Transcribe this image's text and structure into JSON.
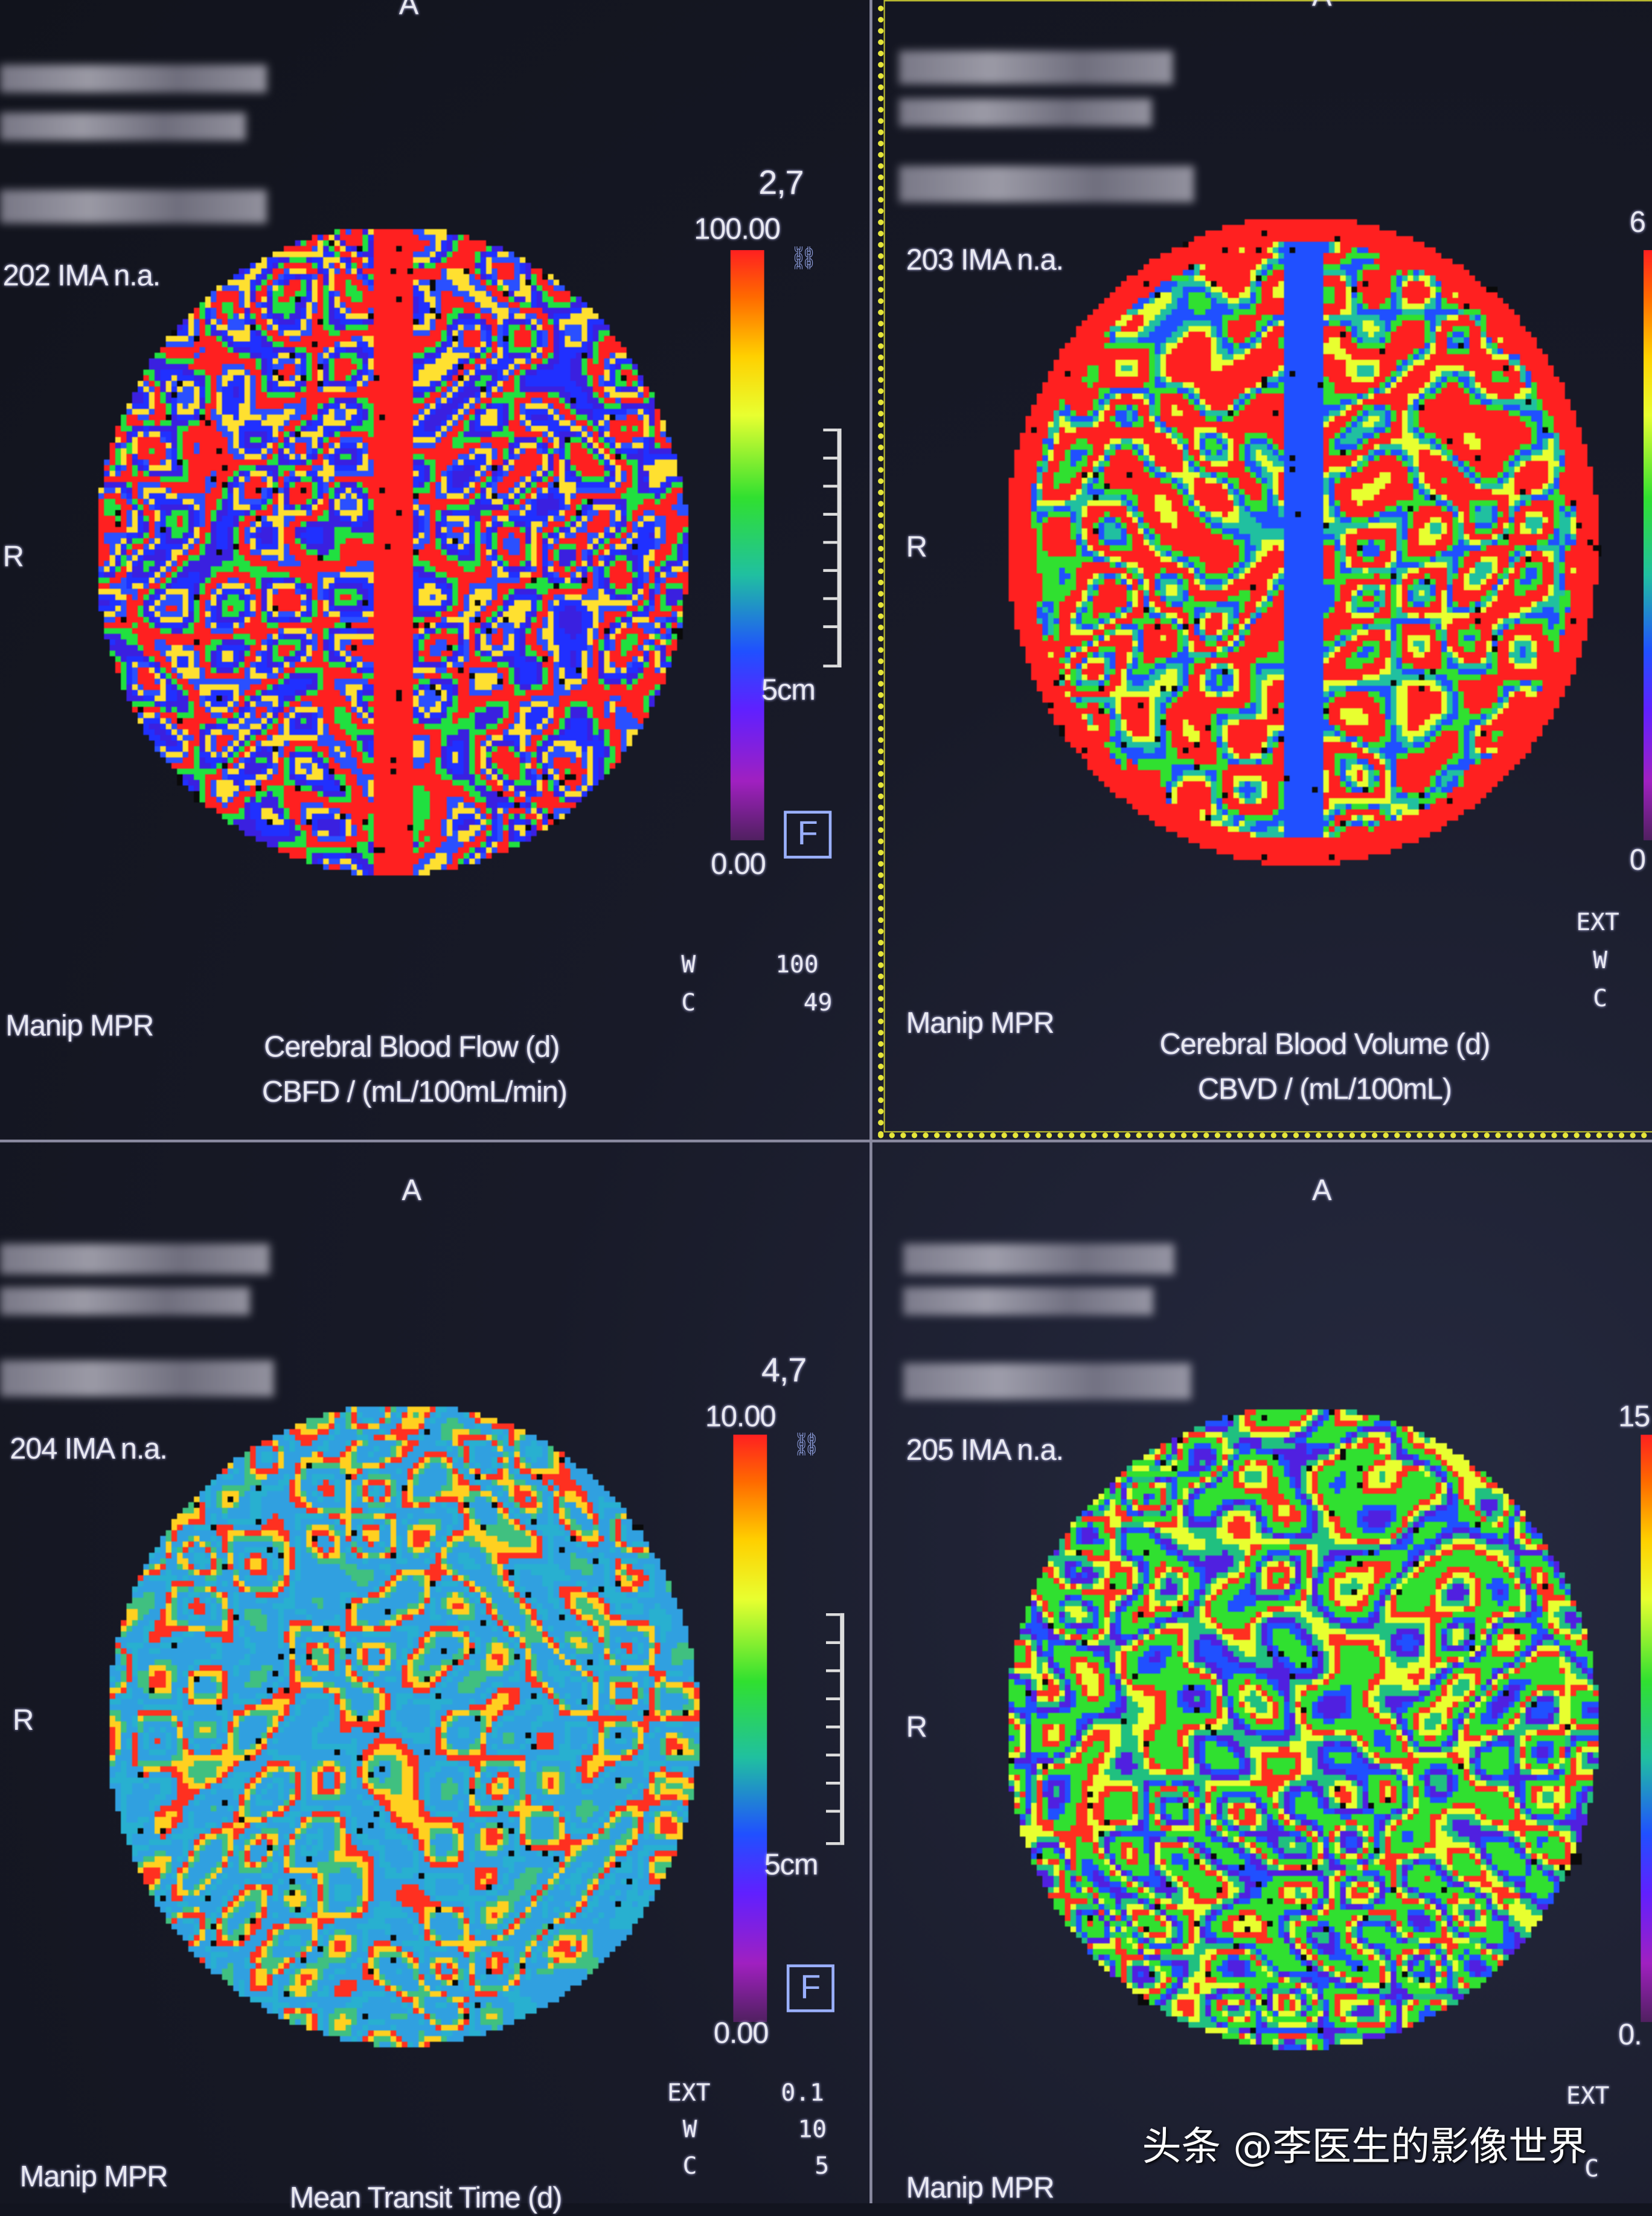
{
  "panels": [
    {
      "orientation_top": "A",
      "orientation_left": "R",
      "series": "202 IMA n.a.",
      "zoom": "2,7",
      "scale_max": "100.00",
      "scale_min": "0.00",
      "ruler_label": "5cm",
      "filter_badge": "F",
      "window_label": "W",
      "window_value": "100",
      "center_label": "C",
      "center_value": "49",
      "mode": "Manip MPR",
      "caption_line1": "Cerebral Blood Flow (d)",
      "caption_line2": "CBFD / (mL/100mL/min)",
      "palette": [
        "#2030ff",
        "#3a20e0",
        "#20e040",
        "#ff2020",
        "#ff2020",
        "#2a50ff",
        "#ffe030"
      ]
    },
    {
      "orientation_top": "A",
      "orientation_left": "R",
      "series": "203 IMA n.a.",
      "scale_max": "6",
      "scale_min": "0",
      "ext_label": "EXT",
      "window_label": "W",
      "center_label": "C",
      "mode": "Manip MPR",
      "caption_line1": "Cerebral Blood Volume (d)",
      "caption_line2": "CBVD / (mL/100mL)",
      "selected": true,
      "palette": [
        "#ff2020",
        "#ff2020",
        "#30e030",
        "#2050ff",
        "#20c0a0",
        "#e8ff30",
        "#ff2020"
      ]
    },
    {
      "orientation_top": "A",
      "orientation_left": "R",
      "series": "204 IMA n.a.",
      "zoom": "4,7",
      "scale_max": "10.00",
      "scale_min": "0.00",
      "ruler_label": "5cm",
      "filter_badge": "F",
      "ext_label": "EXT",
      "ext_value": "0.1",
      "window_label": "W",
      "window_value": "10",
      "center_label": "C",
      "center_value": "5",
      "mode": "Manip MPR",
      "caption_line1": "Mean Transit Time (d)",
      "palette": [
        "#30a0e0",
        "#30a0e0",
        "#28b0d0",
        "#30a0e0",
        "#ff3020",
        "#ffd020",
        "#40c080"
      ]
    },
    {
      "orientation_top": "A",
      "orientation_left": "R",
      "series": "205 IMA n.a.",
      "scale_max": "15",
      "scale_min": "0.",
      "ext_label": "EXT",
      "center_label": "C",
      "mode": "Manip MPR",
      "palette": [
        "#30e030",
        "#2050ff",
        "#5020e0",
        "#20c080",
        "#e8ff30",
        "#ff3020",
        "#30e030"
      ]
    }
  ],
  "watermark": "头条 @李医生的影像世界",
  "colors": {
    "selection_border": "#e6e63a",
    "background": "#12141f"
  }
}
